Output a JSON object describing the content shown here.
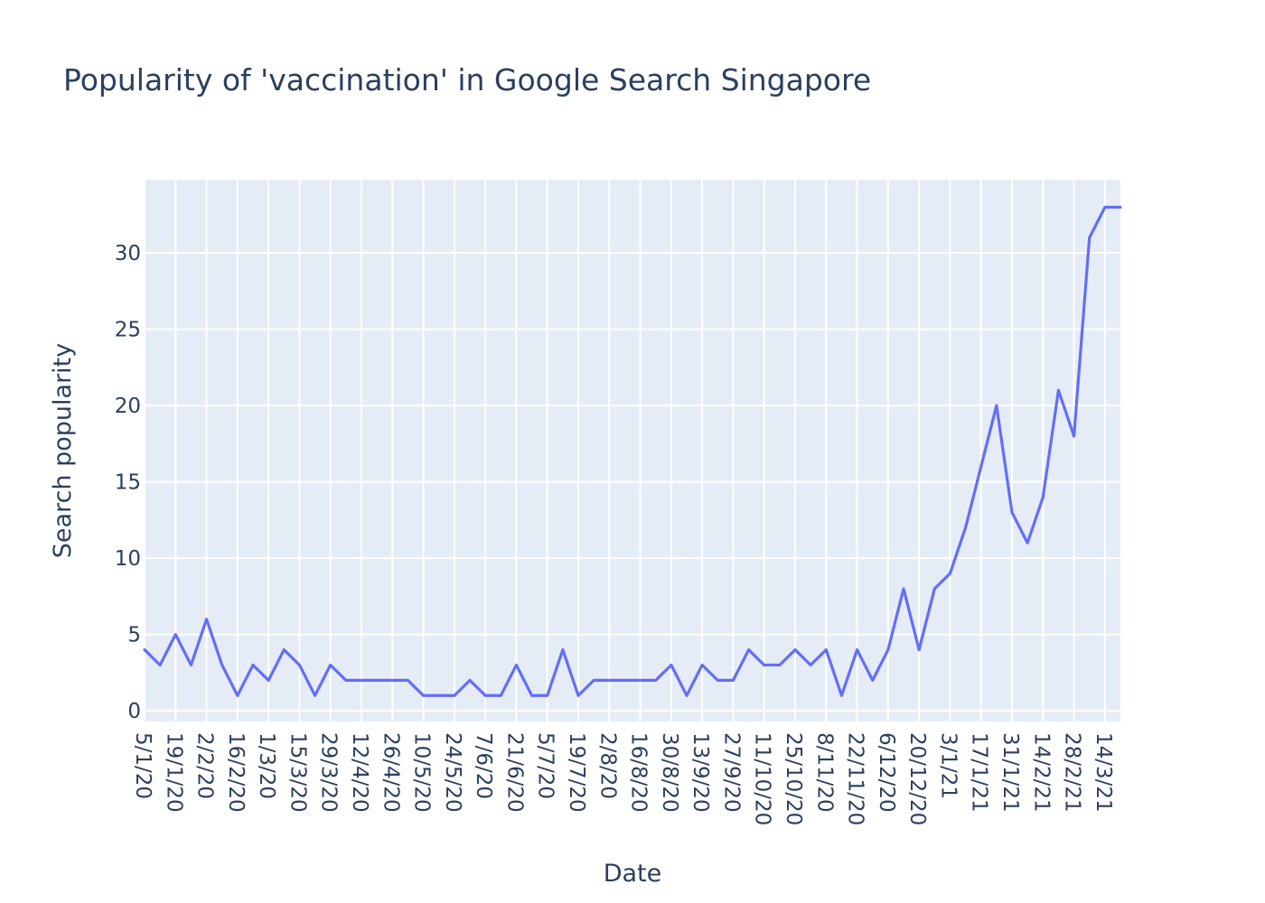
{
  "chart_data": {
    "type": "line",
    "title": "Popularity of 'vaccination' in Google Search Singapore",
    "xlabel": "Date",
    "ylabel": "Search popularity",
    "ylim": [
      -0.7,
      34.8
    ],
    "yticks": [
      0,
      5,
      10,
      15,
      20,
      25,
      30
    ],
    "grid": true,
    "legend": "none",
    "line_color": "#636efa",
    "plot_bgcolor": "#e5ecf6",
    "xtick_labels": [
      "5/1/20",
      "19/1/20",
      "2/2/20",
      "16/2/20",
      "1/3/20",
      "15/3/20",
      "29/3/20",
      "12/4/20",
      "26/4/20",
      "10/5/20",
      "24/5/20",
      "7/6/20",
      "21/6/20",
      "5/7/20",
      "19/7/20",
      "2/8/20",
      "16/8/20",
      "30/8/20",
      "13/9/20",
      "27/9/20",
      "11/10/20",
      "25/10/20",
      "8/11/20",
      "22/11/20",
      "6/12/20",
      "20/12/20",
      "3/1/21",
      "17/1/21",
      "31/1/21",
      "14/2/21",
      "28/2/21",
      "14/3/21"
    ],
    "x": [
      "5/1/20",
      "12/1/20",
      "19/1/20",
      "26/1/20",
      "2/2/20",
      "9/2/20",
      "16/2/20",
      "23/2/20",
      "1/3/20",
      "8/3/20",
      "15/3/20",
      "22/3/20",
      "29/3/20",
      "5/4/20",
      "12/4/20",
      "19/4/20",
      "26/4/20",
      "3/5/20",
      "10/5/20",
      "17/5/20",
      "24/5/20",
      "31/5/20",
      "7/6/20",
      "14/6/20",
      "21/6/20",
      "28/6/20",
      "5/7/20",
      "12/7/20",
      "19/7/20",
      "26/7/20",
      "2/8/20",
      "9/8/20",
      "16/8/20",
      "23/8/20",
      "30/8/20",
      "6/9/20",
      "13/9/20",
      "20/9/20",
      "27/9/20",
      "4/10/20",
      "11/10/20",
      "18/10/20",
      "25/10/20",
      "1/11/20",
      "8/11/20",
      "15/11/20",
      "22/11/20",
      "29/11/20",
      "6/12/20",
      "13/12/20",
      "20/12/20",
      "27/12/20",
      "3/1/21",
      "10/1/21",
      "17/1/21",
      "24/1/21",
      "31/1/21",
      "7/2/21",
      "14/2/21",
      "21/2/21",
      "28/2/21",
      "7/3/21",
      "14/3/21",
      "21/3/21"
    ],
    "series": [
      {
        "values": [
          4,
          3,
          5,
          3,
          6,
          3,
          1,
          3,
          2,
          4,
          3,
          1,
          3,
          2,
          2,
          2,
          2,
          2,
          1,
          1,
          1,
          2,
          1,
          1,
          3,
          1,
          1,
          4,
          1,
          2,
          2,
          2,
          2,
          2,
          3,
          1,
          3,
          2,
          2,
          4,
          3,
          3,
          4,
          3,
          4,
          1,
          4,
          2,
          4,
          8,
          4,
          8,
          9,
          12,
          16,
          20,
          13,
          11,
          14,
          21,
          18,
          31,
          33,
          33
        ]
      }
    ]
  }
}
